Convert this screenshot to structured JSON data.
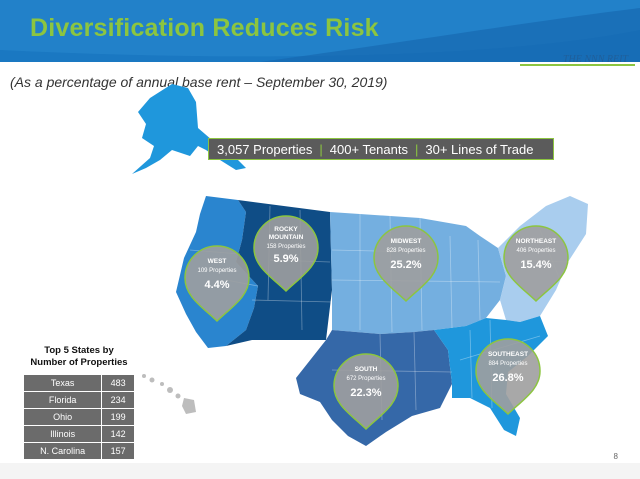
{
  "title": "Diversification Reduces Risk",
  "logo_text": "THE NNN REIT",
  "subtitle": "(As a percentage of annual base rent – September 30, 2019)",
  "stats": [
    "3,057 Properties",
    "400+ Tenants",
    "30+ Lines of Trade"
  ],
  "regions": {
    "west": {
      "name": "WEST",
      "properties": "109 Properties",
      "pct": "4.4%"
    },
    "rocky": {
      "name_line1": "ROCKY",
      "name_line2": "MOUNTAIN",
      "properties": "158 Properties",
      "pct": "5.9%"
    },
    "midwest": {
      "name": "MIDWEST",
      "properties": "828 Properties",
      "pct": "25.2%"
    },
    "northeast": {
      "name": "NORTHEAST",
      "properties": "406 Properties",
      "pct": "15.4%"
    },
    "south": {
      "name": "SOUTH",
      "properties": "672 Properties",
      "pct": "22.3%"
    },
    "southeast": {
      "name": "SOUTHEAST",
      "properties": "884 Properties",
      "pct": "26.8%"
    }
  },
  "top5": {
    "heading_line1": "Top 5 States by",
    "heading_line2": "Number of Properties",
    "rows": [
      {
        "state": "Texas",
        "count": "483"
      },
      {
        "state": "Florida",
        "count": "234"
      },
      {
        "state": "Ohio",
        "count": "199"
      },
      {
        "state": "Illinois",
        "count": "142"
      },
      {
        "state": "N. Carolina",
        "count": "157"
      }
    ]
  },
  "page_number": "8",
  "colors": {
    "header": "#1a78c2",
    "accent_green": "#8cc540",
    "west": "#2a85cf",
    "rocky": "#0f4d86",
    "midwest": "#74afe0",
    "northeast": "#a9cdee",
    "south": "#3568a8",
    "southeast": "#1f97dc",
    "pin": "#9e9e9e"
  }
}
